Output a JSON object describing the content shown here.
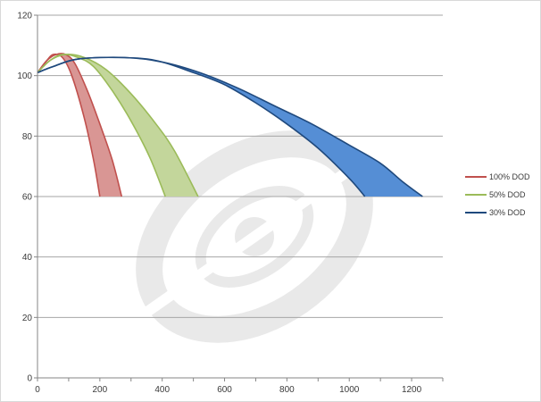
{
  "chart_data": {
    "type": "area",
    "title": "",
    "xlabel": "",
    "ylabel": "",
    "xlim": [
      0,
      1300
    ],
    "ylim": [
      0,
      120
    ],
    "x_ticks": [
      0,
      200,
      400,
      600,
      800,
      1000,
      1200
    ],
    "y_ticks": [
      0,
      20,
      40,
      60,
      80,
      100,
      120
    ],
    "grid": "horizontal",
    "legend_position": "right",
    "series": [
      {
        "name": "100% DOD",
        "line_color": "#c0504d",
        "fill_color": "#d99694",
        "lower": [
          [
            0,
            101
          ],
          [
            30,
            105
          ],
          [
            50,
            107
          ],
          [
            80,
            106
          ],
          [
            110,
            100
          ],
          [
            150,
            86
          ],
          [
            180,
            72
          ],
          [
            200,
            60
          ]
        ],
        "upper": [
          [
            0,
            101
          ],
          [
            30,
            105
          ],
          [
            60,
            107
          ],
          [
            90,
            107
          ],
          [
            120,
            104
          ],
          [
            160,
            95
          ],
          [
            200,
            84
          ],
          [
            240,
            72
          ],
          [
            270,
            60
          ]
        ]
      },
      {
        "name": "50% DOD",
        "line_color": "#9bbb59",
        "fill_color": "#c3d69b",
        "lower": [
          [
            0,
            101
          ],
          [
            40,
            105
          ],
          [
            80,
            107
          ],
          [
            130,
            106
          ],
          [
            180,
            103
          ],
          [
            240,
            95
          ],
          [
            300,
            85
          ],
          [
            360,
            73
          ],
          [
            410,
            60
          ]
        ],
        "upper": [
          [
            0,
            101
          ],
          [
            40,
            105
          ],
          [
            90,
            107
          ],
          [
            150,
            106
          ],
          [
            220,
            102
          ],
          [
            300,
            94
          ],
          [
            380,
            84
          ],
          [
            440,
            75
          ],
          [
            515,
            60
          ]
        ]
      },
      {
        "name": "30% DOD",
        "line_color": "#1f497d",
        "fill_color": "#558ed5",
        "lower": [
          [
            0,
            101
          ],
          [
            50,
            103
          ],
          [
            130,
            105.5
          ],
          [
            260,
            106
          ],
          [
            380,
            105
          ],
          [
            500,
            101
          ],
          [
            600,
            97
          ],
          [
            700,
            91
          ],
          [
            800,
            84
          ],
          [
            900,
            76
          ],
          [
            1000,
            66
          ],
          [
            1050,
            60
          ]
        ],
        "upper": [
          [
            0,
            101
          ],
          [
            50,
            103
          ],
          [
            130,
            105.5
          ],
          [
            280,
            106
          ],
          [
            400,
            104.5
          ],
          [
            520,
            101
          ],
          [
            640,
            96
          ],
          [
            760,
            90
          ],
          [
            880,
            84
          ],
          [
            1000,
            77
          ],
          [
            1100,
            71
          ],
          [
            1170,
            65
          ],
          [
            1235,
            60
          ]
        ]
      }
    ]
  }
}
